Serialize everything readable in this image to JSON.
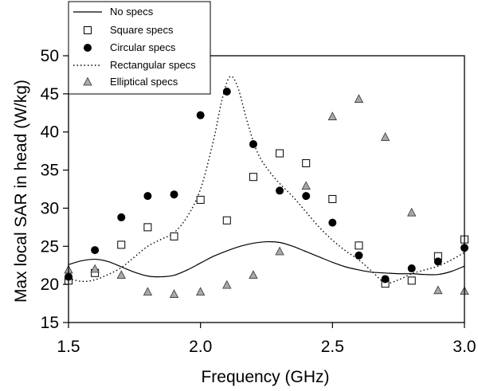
{
  "chart_data": {
    "type": "scatter",
    "xlabel": "Frequency (GHz)",
    "ylabel": "Max local SAR in head (W/kg)",
    "xlim": [
      1.5,
      3.0
    ],
    "ylim": [
      15,
      50
    ],
    "x_ticks": [
      "1.5",
      "2.0",
      "2.5",
      "3.0"
    ],
    "y_ticks": [
      "15",
      "20",
      "25",
      "30",
      "35",
      "40",
      "45",
      "50"
    ],
    "grid": false,
    "legend_position": "top-left",
    "series": [
      {
        "name": "No specs",
        "style": "solid-line",
        "color": "#000000",
        "points": [
          [
            1.5,
            22.6
          ],
          [
            1.55,
            23.1
          ],
          [
            1.6,
            23.3
          ],
          [
            1.65,
            23.0
          ],
          [
            1.7,
            22.3
          ],
          [
            1.75,
            21.6
          ],
          [
            1.8,
            21.1
          ],
          [
            1.85,
            21.0
          ],
          [
            1.9,
            21.2
          ],
          [
            1.95,
            21.9
          ],
          [
            2.0,
            22.8
          ],
          [
            2.05,
            23.7
          ],
          [
            2.1,
            24.4
          ],
          [
            2.15,
            25.0
          ],
          [
            2.2,
            25.4
          ],
          [
            2.25,
            25.6
          ],
          [
            2.3,
            25.5
          ],
          [
            2.35,
            25.0
          ],
          [
            2.4,
            24.3
          ],
          [
            2.45,
            23.6
          ],
          [
            2.5,
            22.9
          ],
          [
            2.55,
            22.3
          ],
          [
            2.6,
            21.9
          ],
          [
            2.65,
            21.6
          ],
          [
            2.7,
            21.5
          ],
          [
            2.75,
            21.4
          ],
          [
            2.8,
            21.4
          ],
          [
            2.85,
            21.3
          ],
          [
            2.9,
            21.3
          ],
          [
            2.95,
            21.7
          ],
          [
            3.0,
            22.4
          ]
        ]
      },
      {
        "name": "Square specs",
        "style": "open-square",
        "color": "#000000",
        "points": [
          [
            1.5,
            20.5
          ],
          [
            1.6,
            21.5
          ],
          [
            1.7,
            25.2
          ],
          [
            1.8,
            27.5
          ],
          [
            1.9,
            26.3
          ],
          [
            2.0,
            31.1
          ],
          [
            2.1,
            28.4
          ],
          [
            2.2,
            34.1
          ],
          [
            2.3,
            37.2
          ],
          [
            2.4,
            35.9
          ],
          [
            2.5,
            31.2
          ],
          [
            2.6,
            25.1
          ],
          [
            2.7,
            20.1
          ],
          [
            2.8,
            20.5
          ],
          [
            2.9,
            23.7
          ],
          [
            3.0,
            25.9
          ]
        ]
      },
      {
        "name": "Circular specs",
        "style": "filled-circle",
        "color": "#000000",
        "points": [
          [
            1.5,
            21.0
          ],
          [
            1.6,
            24.5
          ],
          [
            1.7,
            28.8
          ],
          [
            1.8,
            31.6
          ],
          [
            1.9,
            31.8
          ],
          [
            2.0,
            42.2
          ],
          [
            2.1,
            45.3
          ],
          [
            2.2,
            38.4
          ],
          [
            2.3,
            32.3
          ],
          [
            2.4,
            31.6
          ],
          [
            2.5,
            28.1
          ],
          [
            2.6,
            23.8
          ],
          [
            2.7,
            20.7
          ],
          [
            2.8,
            22.1
          ],
          [
            2.9,
            23.0
          ],
          [
            3.0,
            24.8
          ]
        ]
      },
      {
        "name": "Rectangular specs",
        "style": "dotted-line",
        "color": "#000000",
        "points": [
          [
            1.5,
            20.8
          ],
          [
            1.55,
            20.4
          ],
          [
            1.6,
            20.6
          ],
          [
            1.65,
            21.3
          ],
          [
            1.7,
            22.2
          ],
          [
            1.75,
            23.6
          ],
          [
            1.8,
            25.0
          ],
          [
            1.85,
            25.9
          ],
          [
            1.9,
            26.8
          ],
          [
            1.95,
            28.9
          ],
          [
            2.0,
            32.5
          ],
          [
            2.05,
            39.0
          ],
          [
            2.08,
            44.0
          ],
          [
            2.11,
            47.2
          ],
          [
            2.14,
            46.0
          ],
          [
            2.18,
            41.0
          ],
          [
            2.22,
            37.0
          ],
          [
            2.28,
            34.0
          ],
          [
            2.35,
            31.5
          ],
          [
            2.4,
            29.5
          ],
          [
            2.45,
            27.5
          ],
          [
            2.5,
            25.8
          ],
          [
            2.55,
            24.4
          ],
          [
            2.6,
            23.2
          ],
          [
            2.65,
            21.7
          ],
          [
            2.7,
            20.2
          ],
          [
            2.75,
            20.6
          ],
          [
            2.8,
            21.4
          ],
          [
            2.85,
            21.9
          ],
          [
            2.9,
            22.4
          ],
          [
            2.95,
            23.2
          ],
          [
            3.0,
            24.2
          ]
        ]
      },
      {
        "name": "Elliptical specs",
        "style": "gray-triangle",
        "color": "#a8a8a8",
        "points": [
          [
            1.5,
            21.9
          ],
          [
            1.6,
            22.0
          ],
          [
            1.7,
            21.2
          ],
          [
            1.8,
            19.0
          ],
          [
            1.9,
            18.7
          ],
          [
            2.0,
            19.0
          ],
          [
            2.1,
            19.9
          ],
          [
            2.2,
            21.2
          ],
          [
            2.3,
            24.3
          ],
          [
            2.4,
            32.9
          ],
          [
            2.5,
            42.0
          ],
          [
            2.6,
            44.3
          ],
          [
            2.7,
            39.3
          ],
          [
            2.8,
            29.4
          ],
          [
            2.9,
            19.2
          ],
          [
            3.0,
            19.1
          ]
        ]
      }
    ]
  }
}
